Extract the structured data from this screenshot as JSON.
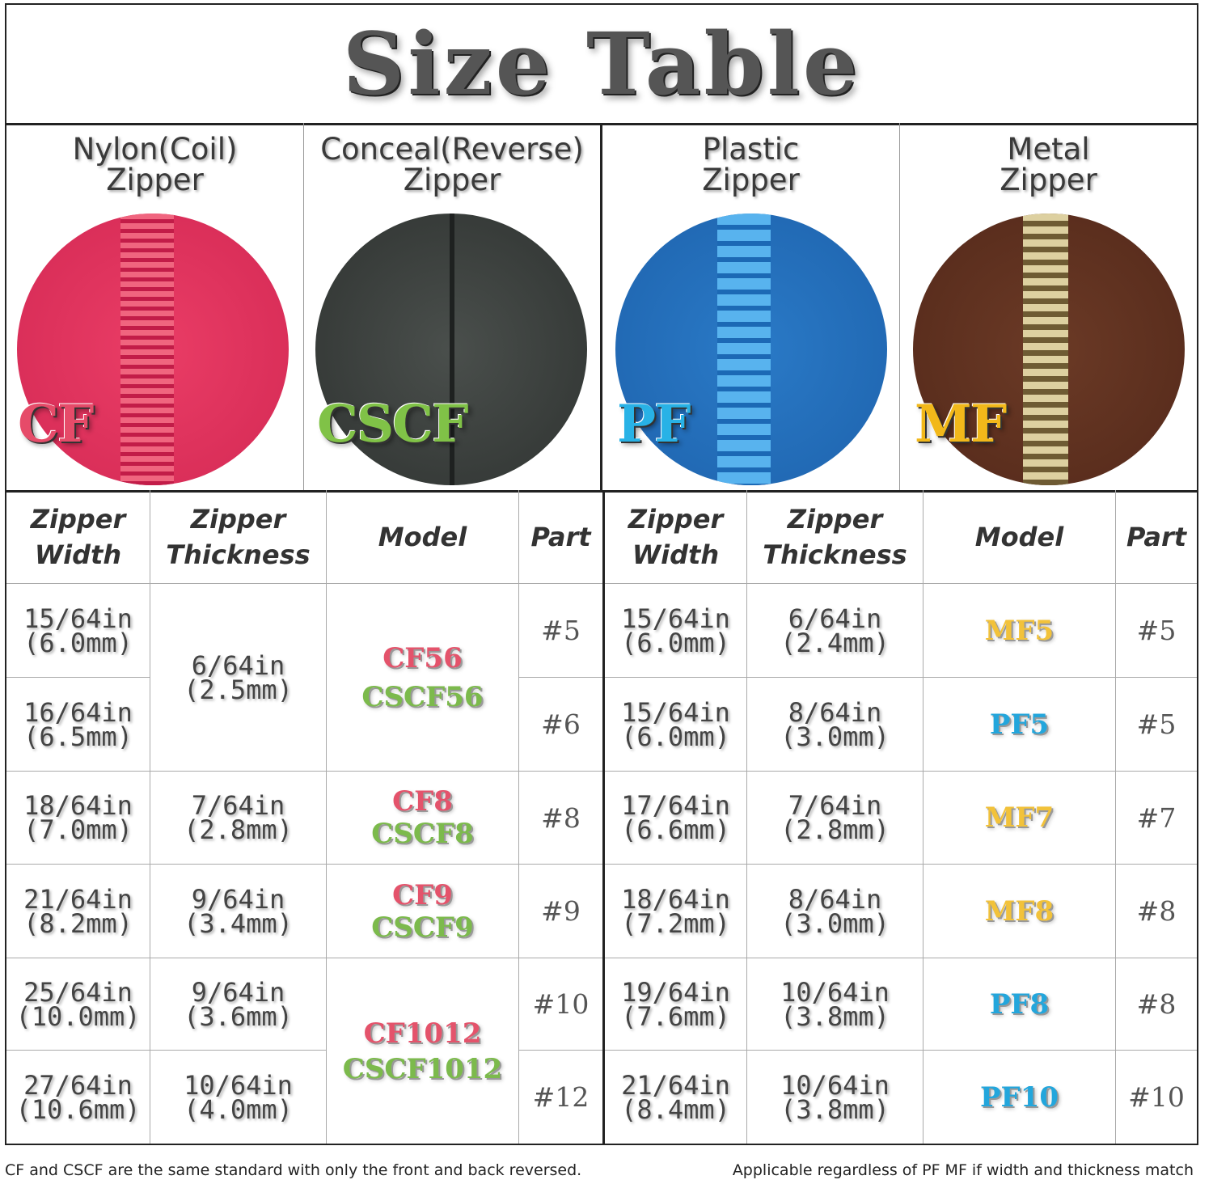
{
  "title": "Size Table",
  "zipper_types": [
    {
      "name": "Nylon(Coil)\nZipper",
      "code": "CF",
      "code_color": "#e64b69",
      "swatch": "pink"
    },
    {
      "name": "Conceal(Reverse)\nZipper",
      "code": "CSCF",
      "code_color": "#80c247",
      "swatch": "dark-gray"
    },
    {
      "name": "Plastic\nZipper",
      "code": "PF",
      "code_color": "#28b2e6",
      "swatch": "blue"
    },
    {
      "name": "Metal\nZipper",
      "code": "MF",
      "code_color": "#f2b81a",
      "swatch": "brown"
    }
  ],
  "headers": {
    "width": "Zipper\nWidth",
    "thickness": "Zipper\nThickness",
    "model": "Model",
    "part": "Part"
  },
  "left_table": {
    "rows": [
      {
        "width": "15/64in\n(6.0mm)",
        "part": "#5"
      },
      {
        "width": "16/64in\n(6.5mm)",
        "part": "#6"
      },
      {
        "width": "18/64in\n(7.0mm)",
        "part": "#8"
      },
      {
        "width": "21/64in\n(8.2mm)",
        "part": "#9"
      },
      {
        "width": "25/64in\n(10.0mm)",
        "part": "#10"
      },
      {
        "width": "27/64in\n(10.6mm)",
        "part": "#12"
      }
    ],
    "thickness": [
      {
        "value": "6/64in\n(2.5mm)",
        "rows": "1-2"
      },
      {
        "value": "7/64in\n(2.8mm)",
        "rows": "3"
      },
      {
        "value": "9/64in\n(3.4mm)",
        "rows": "4"
      },
      {
        "value": "9/64in\n(3.6mm)",
        "rows": "5"
      },
      {
        "value": "10/64in\n(4.0mm)",
        "rows": "6"
      }
    ],
    "models": [
      {
        "cf": "CF56",
        "cscf": "CSCF56",
        "rows": "1-2"
      },
      {
        "cf": "CF8",
        "cscf": "CSCF8",
        "rows": "3"
      },
      {
        "cf": "CF9",
        "cscf": "CSCF9",
        "rows": "4"
      },
      {
        "cf": "CF1012",
        "cscf": "CSCF1012",
        "rows": "5-6"
      }
    ]
  },
  "right_table": {
    "rows": [
      {
        "width": "15/64in\n(6.0mm)",
        "thickness": "6/64in\n(2.4mm)",
        "model": "MF5",
        "kind": "mf",
        "part": "#5"
      },
      {
        "width": "15/64in\n(6.0mm)",
        "thickness": "8/64in\n(3.0mm)",
        "model": "PF5",
        "kind": "pf",
        "part": "#5"
      },
      {
        "width": "17/64in\n(6.6mm)",
        "thickness": "7/64in\n(2.8mm)",
        "model": "MF7",
        "kind": "mf",
        "part": "#7"
      },
      {
        "width": "18/64in\n(7.2mm)",
        "thickness": "8/64in\n(3.0mm)",
        "model": "MF8",
        "kind": "mf",
        "part": "#8"
      },
      {
        "width": "19/64in\n(7.6mm)",
        "thickness": "10/64in\n(3.8mm)",
        "model": "PF8",
        "kind": "pf",
        "part": "#8"
      },
      {
        "width": "21/64in\n(8.4mm)",
        "thickness": "10/64in\n(3.8mm)",
        "model": "PF10",
        "kind": "pf",
        "part": "#10"
      }
    ]
  },
  "notes": {
    "left": "CF and CSCF are the same standard with only the front and back reversed.",
    "right": "Applicable regardless of PF MF if width and thickness match"
  }
}
